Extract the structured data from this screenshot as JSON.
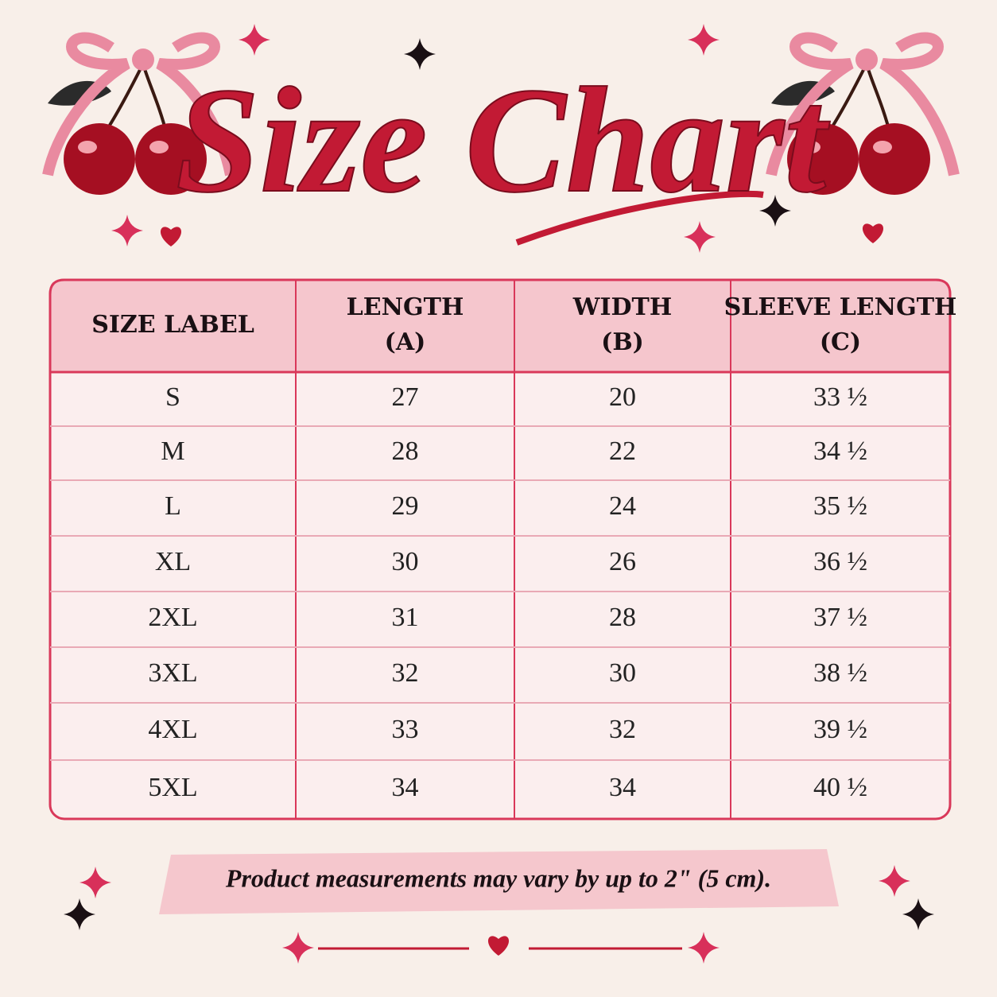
{
  "header": {
    "title": "Size Chart"
  },
  "table": {
    "columns": [
      [
        "SIZE LABEL"
      ],
      [
        "LENGTH",
        "(A)"
      ],
      [
        "WIDTH",
        "(B)"
      ],
      [
        "SLEEVE LENGTH",
        "(C)"
      ]
    ],
    "rows": [
      [
        "S",
        "27",
        "20",
        "33 ½"
      ],
      [
        "M",
        "28",
        "22",
        "34 ½"
      ],
      [
        "L",
        "29",
        "24",
        "35 ½"
      ],
      [
        "XL",
        "30",
        "26",
        "36 ½"
      ],
      [
        "2XL",
        "31",
        "28",
        "37 ½"
      ],
      [
        "3XL",
        "32",
        "30",
        "38 ½"
      ],
      [
        "4XL",
        "33",
        "32",
        "39 ½"
      ],
      [
        "5XL",
        "34",
        "34",
        "40 ½"
      ]
    ]
  },
  "footer": {
    "note": "Product measurements may vary by up to 2\" (5 cm)."
  }
}
